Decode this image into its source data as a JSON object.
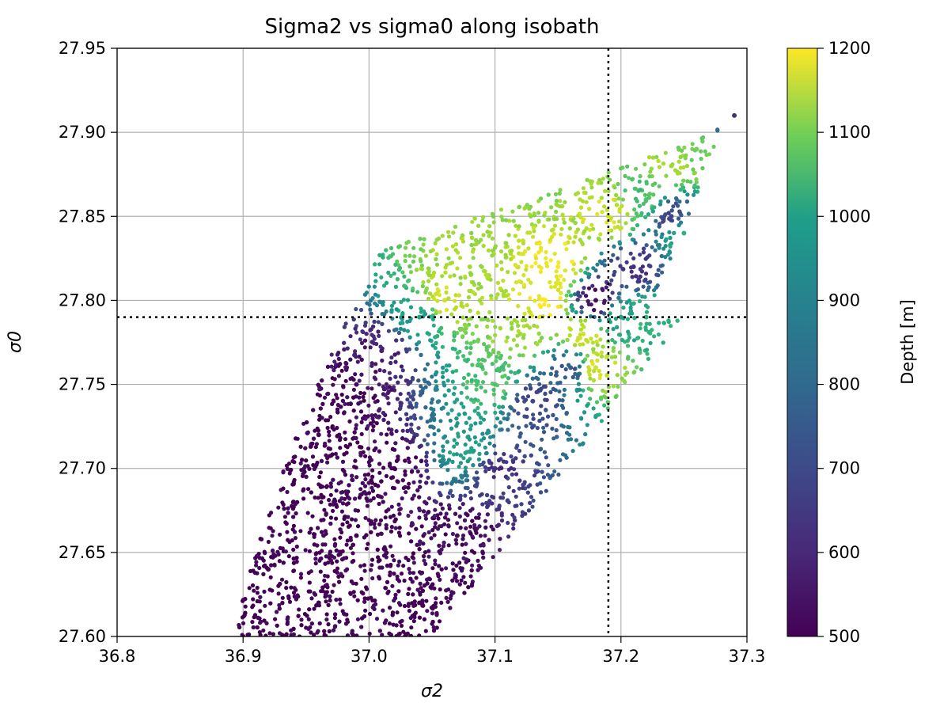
{
  "chart_data": {
    "type": "scatter",
    "title": "Sigma2 vs sigma0 along isobath",
    "xlabel": "σ2",
    "ylabel": "σ0",
    "xlim": [
      36.8,
      37.3
    ],
    "ylim": [
      27.6,
      27.95
    ],
    "xticks": [
      "36.8",
      "36.9",
      "37.0",
      "37.1",
      "37.2",
      "37.3"
    ],
    "yticks": [
      "27.60",
      "27.65",
      "27.70",
      "27.75",
      "27.80",
      "27.85",
      "27.90",
      "27.95"
    ],
    "grid": true,
    "reference_lines": {
      "vertical_x": 37.19,
      "horizontal_y": 27.79,
      "style": "dotted"
    },
    "colorbar": {
      "label": "Depth [m]",
      "colormap": "viridis",
      "range": [
        500,
        1200
      ],
      "ticks": [
        "500",
        "600",
        "700",
        "800",
        "900",
        "1000",
        "1100",
        "1200"
      ]
    },
    "series": [
      {
        "points": [
          {
            "x": 36.9,
            "y": 27.6,
            "depth": 500
          },
          {
            "x": 36.92,
            "y": 27.64,
            "depth": 500
          },
          {
            "x": 36.94,
            "y": 27.68,
            "depth": 500
          },
          {
            "x": 36.96,
            "y": 27.72,
            "depth": 500
          },
          {
            "x": 36.99,
            "y": 27.75,
            "depth": 520
          },
          {
            "x": 37.01,
            "y": 27.77,
            "depth": 560
          },
          {
            "x": 37.04,
            "y": 27.79,
            "depth": 900
          },
          {
            "x": 37.06,
            "y": 27.8,
            "depth": 1150
          },
          {
            "x": 37.08,
            "y": 27.82,
            "depth": 1100
          },
          {
            "x": 36.96,
            "y": 27.62,
            "depth": 500
          },
          {
            "x": 36.99,
            "y": 27.66,
            "depth": 500
          },
          {
            "x": 37.02,
            "y": 27.7,
            "depth": 500
          },
          {
            "x": 37.04,
            "y": 27.62,
            "depth": 500
          },
          {
            "x": 37.07,
            "y": 27.66,
            "depth": 520
          },
          {
            "x": 37.1,
            "y": 27.7,
            "depth": 600
          },
          {
            "x": 37.13,
            "y": 27.74,
            "depth": 650
          },
          {
            "x": 37.16,
            "y": 27.76,
            "depth": 700
          },
          {
            "x": 37.08,
            "y": 27.71,
            "depth": 900
          },
          {
            "x": 37.1,
            "y": 27.75,
            "depth": 1000
          },
          {
            "x": 37.12,
            "y": 27.78,
            "depth": 1100
          },
          {
            "x": 37.14,
            "y": 27.8,
            "depth": 1200
          },
          {
            "x": 37.15,
            "y": 27.82,
            "depth": 1200
          },
          {
            "x": 37.17,
            "y": 27.78,
            "depth": 1150
          },
          {
            "x": 37.18,
            "y": 27.76,
            "depth": 1150
          },
          {
            "x": 37.2,
            "y": 27.79,
            "depth": 900
          },
          {
            "x": 37.22,
            "y": 27.79,
            "depth": 950
          },
          {
            "x": 37.21,
            "y": 27.82,
            "depth": 600
          },
          {
            "x": 37.24,
            "y": 27.85,
            "depth": 650
          },
          {
            "x": 37.25,
            "y": 27.84,
            "depth": 950
          },
          {
            "x": 37.22,
            "y": 27.86,
            "depth": 1000
          },
          {
            "x": 37.24,
            "y": 27.88,
            "depth": 1100
          },
          {
            "x": 37.26,
            "y": 27.89,
            "depth": 1050
          },
          {
            "x": 37.29,
            "y": 27.91,
            "depth": 600
          },
          {
            "x": 37.19,
            "y": 27.85,
            "depth": 1150
          },
          {
            "x": 37.18,
            "y": 27.8,
            "depth": 520
          }
        ]
      }
    ]
  }
}
